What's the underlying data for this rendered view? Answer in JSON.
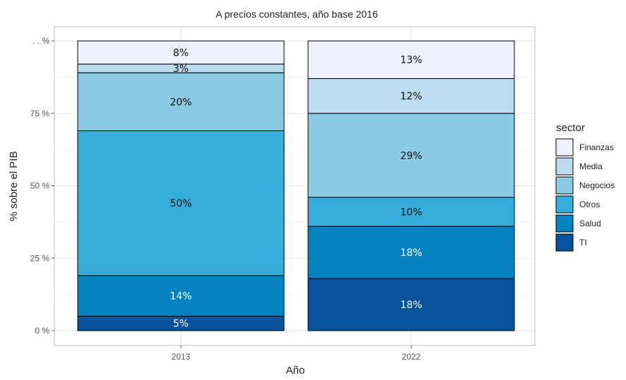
{
  "chart_data": {
    "type": "bar",
    "stacked": true,
    "title": "A precios constantes, año base 2016",
    "xlabel": "Año",
    "ylabel": "% sobre el PIB",
    "categories": [
      "2013",
      "2022"
    ],
    "yticks": [
      0,
      25,
      50,
      75,
      100
    ],
    "ytick_labels": [
      "0 %",
      "25 %",
      "50 %",
      "75 %",
      ". . %"
    ],
    "ylim": [
      0,
      100
    ],
    "grid": true,
    "legend_title": "sector",
    "legend_position": "right",
    "series": [
      {
        "name": "TI",
        "color": "#08519c",
        "values": [
          5,
          18
        ],
        "labels": [
          "5%",
          "18%"
        ],
        "label_color": "#ffffff"
      },
      {
        "name": "Salud",
        "color": "#0583c1",
        "values": [
          14,
          18
        ],
        "labels": [
          "14%",
          "18%"
        ],
        "label_color": "#ffffff"
      },
      {
        "name": "Otros",
        "color": "#36acd8",
        "values": [
          50,
          10
        ],
        "labels": [
          "50%",
          "10%"
        ],
        "label_color": "#111111"
      },
      {
        "name": "Negocios",
        "color": "#8bcae3",
        "values": [
          20,
          29
        ],
        "labels": [
          "20%",
          "29%"
        ],
        "label_color": "#111111"
      },
      {
        "name": "Media",
        "color": "#bddbef",
        "values": [
          3,
          12
        ],
        "labels": [
          "3%",
          "12%"
        ],
        "label_color": "#111111"
      },
      {
        "name": "Finanzas",
        "color": "#eef1fd",
        "values": [
          8,
          13
        ],
        "labels": [
          "8%",
          "13%"
        ],
        "label_color": "#111111"
      }
    ],
    "legend_order": [
      "Finanzas",
      "Media",
      "Negocios",
      "Otros",
      "Salud",
      "TI"
    ]
  }
}
